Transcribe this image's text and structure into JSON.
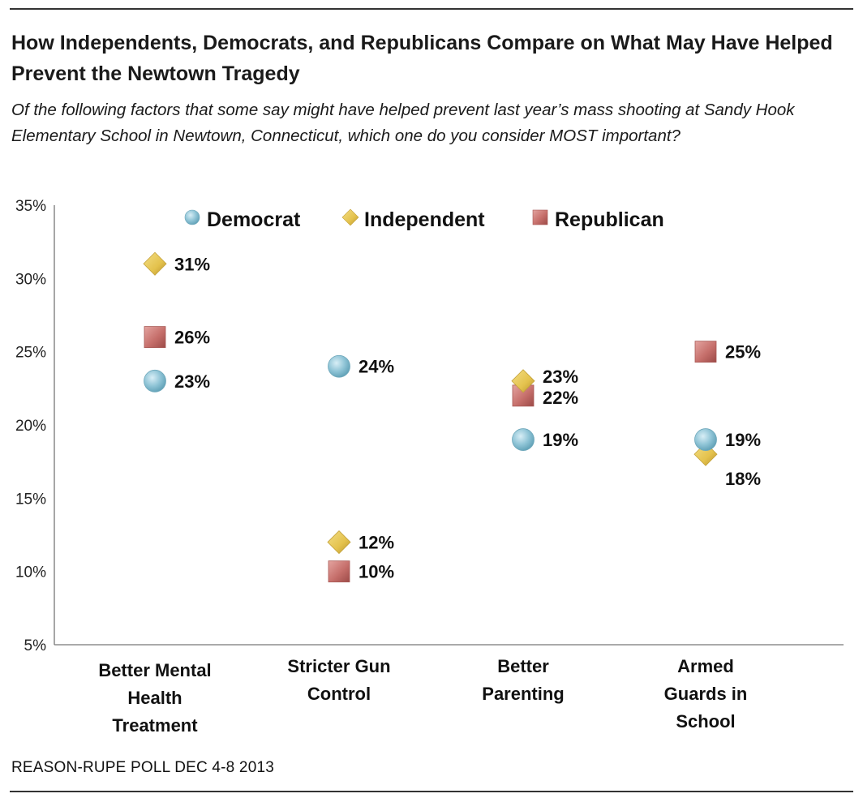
{
  "header": {
    "title": "How Independents, Democrats, and Republicans Compare on What May Have Helped Prevent the Newtown Tragedy",
    "subtitle": "Of the following factors that some say might have helped prevent last year’s mass shooting at Sandy Hook Elementary School in Newtown, Connecticut, which one do you consider MOST important?"
  },
  "footer": {
    "source": "REASON-RUPE POLL DEC 4-8 2013"
  },
  "chart_data": {
    "type": "scatter",
    "title": "How Independents, Democrats, and Republicans Compare on What May Have Helped Prevent the Newtown Tragedy",
    "xlabel": "",
    "ylabel": "",
    "ylim": [
      5,
      35
    ],
    "yticks": [
      5,
      10,
      15,
      20,
      25,
      30,
      35
    ],
    "ytick_format": "%",
    "grid": false,
    "legend_position": "top",
    "categories": [
      [
        "Better Mental",
        "Health",
        "Treatment"
      ],
      [
        "Stricter Gun",
        "Control"
      ],
      [
        "Better",
        "Parenting"
      ],
      [
        "Armed",
        "Guards in",
        "School"
      ]
    ],
    "series": [
      {
        "name": "Democrat",
        "marker": "circle",
        "color": "#8fc4d6",
        "values": [
          23,
          24,
          19,
          19
        ]
      },
      {
        "name": "Independent",
        "marker": "diamond",
        "color": "#e4c24d",
        "values": [
          31,
          12,
          23,
          18
        ]
      },
      {
        "name": "Republican",
        "marker": "square",
        "color": "#c66f6b",
        "values": [
          26,
          10,
          22,
          25
        ]
      }
    ]
  }
}
